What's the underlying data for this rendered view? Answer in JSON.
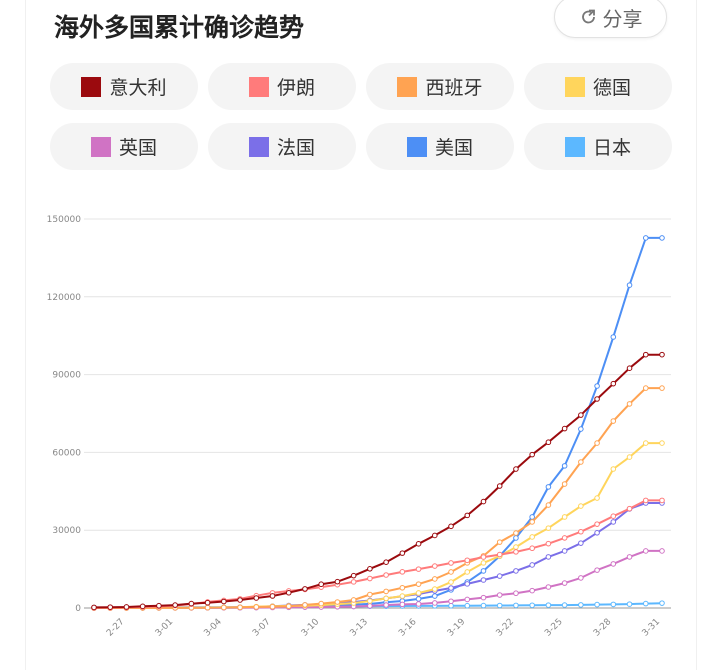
{
  "header": {
    "title": "海外多国累计确诊趋势",
    "share_label": "分享",
    "share_icon": "share-arrow-icon"
  },
  "chart_data": {
    "type": "line",
    "title": "海外多国累计确诊趋势",
    "xlabel": "",
    "ylabel": "",
    "ylim": [
      0,
      150000
    ],
    "yticks": [
      "0",
      "30000",
      "60000",
      "90000",
      "120000",
      "150000"
    ],
    "grid": true,
    "legend_position": "top",
    "x": [
      "2-25",
      "2-26",
      "2-27",
      "2-28",
      "2-29",
      "3-01",
      "3-02",
      "3-03",
      "3-04",
      "3-05",
      "3-06",
      "3-07",
      "3-08",
      "3-09",
      "3-10",
      "3-11",
      "3-12",
      "3-13",
      "3-14",
      "3-15",
      "3-16",
      "3-17",
      "3-18",
      "3-19",
      "3-20",
      "3-21",
      "3-22",
      "3-23",
      "3-24",
      "3-25",
      "3-26",
      "3-27",
      "3-28",
      "3-29",
      "3-30",
      "3-31"
    ],
    "xticks": [
      "2-27",
      "3-01",
      "3-04",
      "3-07",
      "3-10",
      "3-13",
      "3-16",
      "3-19",
      "3-22",
      "3-25",
      "3-28",
      "3-31"
    ],
    "series": [
      {
        "name": "意大利",
        "color": "#9b0a0e",
        "values": [
          229,
          322,
          400,
          650,
          888,
          1128,
          1694,
          2036,
          2502,
          3089,
          3858,
          4636,
          5883,
          7375,
          9172,
          10149,
          12462,
          15113,
          17660,
          21157,
          24747,
          27980,
          31506,
          35713,
          41035,
          47021,
          53578,
          59138,
          63927,
          69176,
          74386,
          80589,
          86498,
          92472,
          97689,
          97689
        ]
      },
      {
        "name": "伊朗",
        "color": "#ff7b7b",
        "values": [
          95,
          139,
          245,
          388,
          593,
          978,
          1501,
          2336,
          2922,
          3513,
          4747,
          5823,
          6566,
          7161,
          8042,
          9000,
          10075,
          11364,
          12729,
          13938,
          14991,
          16169,
          17361,
          18407,
          19644,
          20610,
          21638,
          23049,
          24811,
          27017,
          29406,
          32332,
          35408,
          38309,
          41495,
          41495
        ]
      },
      {
        "name": "西班牙",
        "color": "#ffa352",
        "values": [
          6,
          13,
          15,
          32,
          45,
          84,
          120,
          165,
          200,
          260,
          400,
          500,
          674,
          1200,
          1700,
          2300,
          3100,
          5200,
          6400,
          7800,
          9200,
          11200,
          13900,
          17400,
          20100,
          25400,
          28900,
          33200,
          39700,
          47800,
          56300,
          63600,
          72100,
          78700,
          84800,
          84800
        ]
      },
      {
        "name": "德国",
        "color": "#ffd55c",
        "values": [
          16,
          16,
          18,
          26,
          57,
          79,
          129,
          157,
          240,
          262,
          534,
          640,
          800,
          900,
          1100,
          1500,
          1900,
          2700,
          3700,
          4600,
          5800,
          7300,
          10000,
          13900,
          17400,
          20000,
          23500,
          27400,
          30800,
          35100,
          39300,
          42400,
          53600,
          58200,
          63600,
          63600
        ]
      },
      {
        "name": "英国",
        "color": "#d073c4",
        "values": [
          13,
          13,
          15,
          19,
          20,
          23,
          36,
          50,
          85,
          110,
          160,
          200,
          270,
          320,
          380,
          460,
          590,
          800,
          1140,
          1400,
          1550,
          1950,
          2600,
          3300,
          4000,
          5000,
          5700,
          6700,
          8100,
          9600,
          11600,
          14600,
          17000,
          19700,
          22000,
          22000
        ]
      },
      {
        "name": "法国",
        "color": "#7b6fe8",
        "values": [
          12,
          14,
          18,
          38,
          57,
          100,
          130,
          191,
          212,
          285,
          420,
          700,
          950,
          1200,
          1400,
          1800,
          2300,
          2900,
          3700,
          4500,
          5400,
          6600,
          7700,
          9300,
          10800,
          12300,
          14300,
          16600,
          19700,
          22000,
          25000,
          29000,
          33200,
          38200,
          40500,
          40500
        ]
      },
      {
        "name": "美国",
        "color": "#4d8ff5",
        "values": [
          53,
          57,
          60,
          60,
          60,
          70,
          80,
          100,
          120,
          150,
          230,
          300,
          400,
          500,
          700,
          1000,
          1300,
          1600,
          2200,
          2700,
          3500,
          4600,
          7000,
          10000,
          14300,
          20000,
          27000,
          35100,
          46700,
          54800,
          69000,
          85600,
          104500,
          124500,
          142700,
          142700
        ]
      },
      {
        "name": "日本",
        "color": "#5cb8ff",
        "values": [
          160,
          170,
          186,
          210,
          230,
          239,
          254,
          268,
          284,
          317,
          349,
          408,
          455,
          488,
          514,
          568,
          620,
          675,
          716,
          780,
          814,
          829,
          873,
          889,
          924,
          963,
          1007,
          1054,
          1101,
          1128,
          1193,
          1307,
          1387,
          1499,
          1693,
          1866
        ]
      }
    ]
  }
}
